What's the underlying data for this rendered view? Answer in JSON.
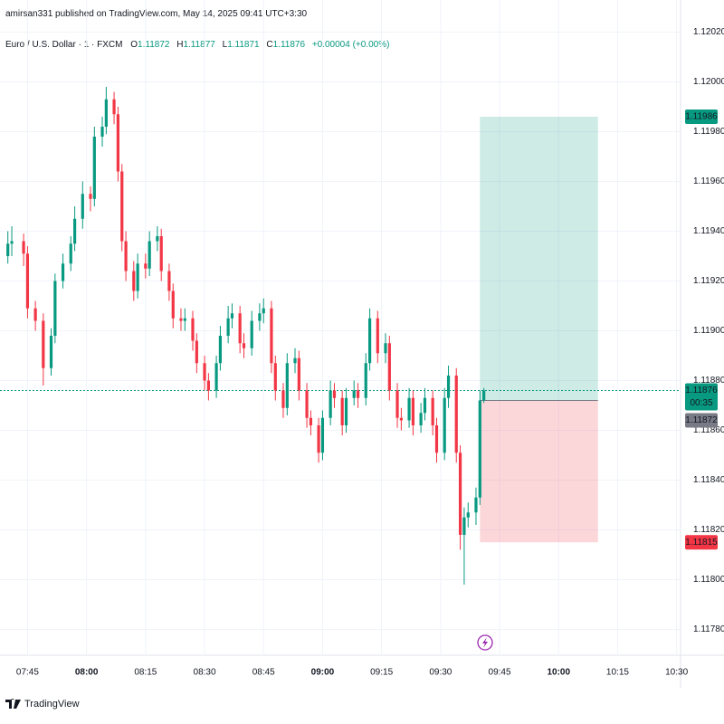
{
  "header": {
    "publisher_line": "amirsan331 published on TradingView.com, May 14, 2025 09:41 UTC+3:30"
  },
  "chart_data": {
    "type": "candlestick",
    "symbol": "Euro / U.S. Dollar · 1 · FXCM",
    "ohlc_labels": [
      "O",
      "H",
      "L",
      "C"
    ],
    "change": "+0.00004 (+0.00%)",
    "countdown": "00:35",
    "up_color": "#089981",
    "down_color": "#f23645",
    "grid": true,
    "xlim": [
      "07:38",
      "10:31"
    ],
    "ylim": [
      1.11774,
      1.12022
    ],
    "xticks": [
      "07:45",
      "08:00",
      "08:15",
      "08:30",
      "08:45",
      "09:00",
      "09:15",
      "09:30",
      "09:45",
      "10:00",
      "10:15",
      "10:30"
    ],
    "yticks": [
      {
        "value": 1.1178,
        "label": "1.11780"
      },
      {
        "value": 1.118,
        "label": "1.11800"
      },
      {
        "value": 1.1182,
        "label": "1.11820"
      },
      {
        "value": 1.1184,
        "label": "1.11840"
      },
      {
        "value": 1.1186,
        "label": "1.11860"
      },
      {
        "value": 1.1188,
        "label": "1.11880"
      },
      {
        "value": 1.119,
        "label": "1.11900"
      },
      {
        "value": 1.1192,
        "label": "1.11920"
      },
      {
        "value": 1.1194,
        "label": "1.11940"
      },
      {
        "value": 1.1196,
        "label": "1.11960"
      },
      {
        "value": 1.1198,
        "label": "1.11980"
      },
      {
        "value": 1.12,
        "label": "1.12000"
      },
      {
        "value": 1.1202,
        "label": "1.12020"
      }
    ],
    "x": [
      "07:40",
      "07:41",
      "07:44",
      "07:45",
      "07:47",
      "07:49",
      "07:51",
      "07:52",
      "07:54",
      "07:56",
      "07:57",
      "07:59",
      "08:01",
      "08:02",
      "08:04",
      "08:05",
      "08:07",
      "08:08",
      "08:09",
      "08:10",
      "08:12",
      "08:13",
      "08:15",
      "08:16",
      "08:18",
      "08:19",
      "08:21",
      "08:22",
      "08:24",
      "08:25",
      "08:27",
      "08:28",
      "08:30",
      "08:31",
      "08:33",
      "08:34",
      "08:36",
      "08:37",
      "08:39",
      "08:40",
      "08:42",
      "08:44",
      "08:45",
      "08:47",
      "08:48",
      "08:50",
      "08:51",
      "08:53",
      "08:54",
      "08:56",
      "08:57",
      "08:59",
      "09:00",
      "09:02",
      "09:03",
      "09:05",
      "09:06",
      "09:08",
      "09:09",
      "09:11",
      "09:12",
      "09:14",
      "09:16",
      "09:17",
      "09:19",
      "09:20",
      "09:22",
      "09:23",
      "09:25",
      "09:26",
      "09:28",
      "09:29",
      "09:31",
      "09:32",
      "09:34",
      "09:35",
      "09:36",
      "09:37",
      "09:39",
      "09:40",
      "09:41"
    ],
    "open": [
      1.1193,
      1.11935,
      1.11936,
      1.11931,
      1.11909,
      1.11904,
      1.11885,
      1.11898,
      1.1192,
      1.11927,
      1.11935,
      1.11945,
      1.11955,
      1.11953,
      1.11978,
      1.11982,
      1.11993,
      1.11987,
      1.11964,
      1.11936,
      1.11924,
      1.11916,
      1.11927,
      1.11925,
      1.11936,
      1.11938,
      1.11924,
      1.11916,
      1.11905,
      1.11904,
      1.11905,
      1.11896,
      1.11887,
      1.1188,
      1.11876,
      1.11887,
      1.11898,
      1.11905,
      1.11907,
      1.11895,
      1.11893,
      1.11904,
      1.11907,
      1.11909,
      1.11887,
      1.11876,
      1.11869,
      1.11887,
      1.11889,
      1.11876,
      1.11865,
      1.11862,
      1.11851,
      1.11865,
      1.11876,
      1.11873,
      1.11862,
      1.11873,
      1.11876,
      1.11873,
      1.11887,
      1.11905,
      1.11891,
      1.11895,
      1.11876,
      1.11865,
      1.11864,
      1.11873,
      1.11862,
      1.11867,
      1.11873,
      1.11862,
      1.11851,
      1.11873,
      1.11882,
      1.11851,
      1.11818,
      1.11825,
      1.11827,
      1.11833,
      1.11872
    ],
    "high": [
      1.1194,
      1.11942,
      1.11939,
      1.11934,
      1.11912,
      1.11907,
      1.11901,
      1.11923,
      1.11931,
      1.11938,
      1.1195,
      1.1196,
      1.11958,
      1.11982,
      1.11986,
      1.11998,
      1.11996,
      1.1199,
      1.11967,
      1.1194,
      1.11928,
      1.11931,
      1.11931,
      1.1194,
      1.11942,
      1.11941,
      1.11927,
      1.11919,
      1.11909,
      1.11909,
      1.11908,
      1.11899,
      1.1189,
      1.11883,
      1.1189,
      1.11902,
      1.1191,
      1.11911,
      1.1191,
      1.11899,
      1.11908,
      1.11911,
      1.11913,
      1.11912,
      1.1189,
      1.11879,
      1.11891,
      1.11893,
      1.11892,
      1.11879,
      1.11868,
      1.11865,
      1.11868,
      1.1188,
      1.11879,
      1.11876,
      1.11877,
      1.1188,
      1.11879,
      1.11891,
      1.11909,
      1.11908,
      1.11899,
      1.11898,
      1.11879,
      1.11869,
      1.11877,
      1.11876,
      1.11871,
      1.11877,
      1.11876,
      1.11865,
      1.11877,
      1.11886,
      1.11885,
      1.11854,
      1.11829,
      1.11831,
      1.11837,
      1.11876,
      1.11877
    ],
    "low": [
      1.11927,
      1.1193,
      1.11926,
      1.11905,
      1.119,
      1.11878,
      1.11882,
      1.11895,
      1.11917,
      1.11924,
      1.11932,
      1.11941,
      1.11948,
      1.1195,
      1.11974,
      1.11979,
      1.11983,
      1.1196,
      1.11932,
      1.1192,
      1.11912,
      1.11913,
      1.11921,
      1.11922,
      1.11932,
      1.1192,
      1.11912,
      1.11901,
      1.119,
      1.119,
      1.11892,
      1.11883,
      1.11876,
      1.11872,
      1.11873,
      1.11884,
      1.11895,
      1.11901,
      1.11891,
      1.11889,
      1.1189,
      1.119,
      1.11903,
      1.11883,
      1.11872,
      1.11865,
      1.11866,
      1.11883,
      1.11872,
      1.11861,
      1.11858,
      1.11847,
      1.11848,
      1.11862,
      1.11869,
      1.11858,
      1.11859,
      1.1187,
      1.11869,
      1.1187,
      1.11884,
      1.11887,
      1.11887,
      1.11872,
      1.11861,
      1.1186,
      1.11861,
      1.11858,
      1.11859,
      1.11864,
      1.11858,
      1.11847,
      1.11848,
      1.11869,
      1.11847,
      1.11812,
      1.11798,
      1.11821,
      1.11822,
      1.1183,
      1.11871
    ],
    "close": [
      1.11935,
      1.11936,
      1.11931,
      1.11909,
      1.11904,
      1.11885,
      1.11898,
      1.1192,
      1.11927,
      1.11935,
      1.11945,
      1.11955,
      1.11953,
      1.11978,
      1.11982,
      1.11993,
      1.11987,
      1.11964,
      1.11936,
      1.11924,
      1.11916,
      1.11927,
      1.11925,
      1.11936,
      1.11938,
      1.11924,
      1.11916,
      1.11905,
      1.11904,
      1.11905,
      1.11896,
      1.11887,
      1.1188,
      1.11876,
      1.11887,
      1.11898,
      1.11905,
      1.11907,
      1.11895,
      1.11893,
      1.11904,
      1.11907,
      1.11909,
      1.11887,
      1.11876,
      1.11869,
      1.11887,
      1.11889,
      1.11876,
      1.11865,
      1.11862,
      1.11851,
      1.11865,
      1.11876,
      1.11873,
      1.11862,
      1.11873,
      1.11876,
      1.11873,
      1.11887,
      1.11905,
      1.11891,
      1.11895,
      1.11876,
      1.11865,
      1.11864,
      1.11873,
      1.11862,
      1.11867,
      1.11873,
      1.11862,
      1.11851,
      1.11873,
      1.11882,
      1.11851,
      1.11818,
      1.11825,
      1.11827,
      1.11833,
      1.11872,
      1.11876
    ],
    "position": {
      "entry": 1.11872,
      "take_profit": 1.11986,
      "stop_loss": 1.11815,
      "start": "09:40",
      "end": "10:10"
    }
  },
  "footer": {
    "brand": "TradingView"
  }
}
